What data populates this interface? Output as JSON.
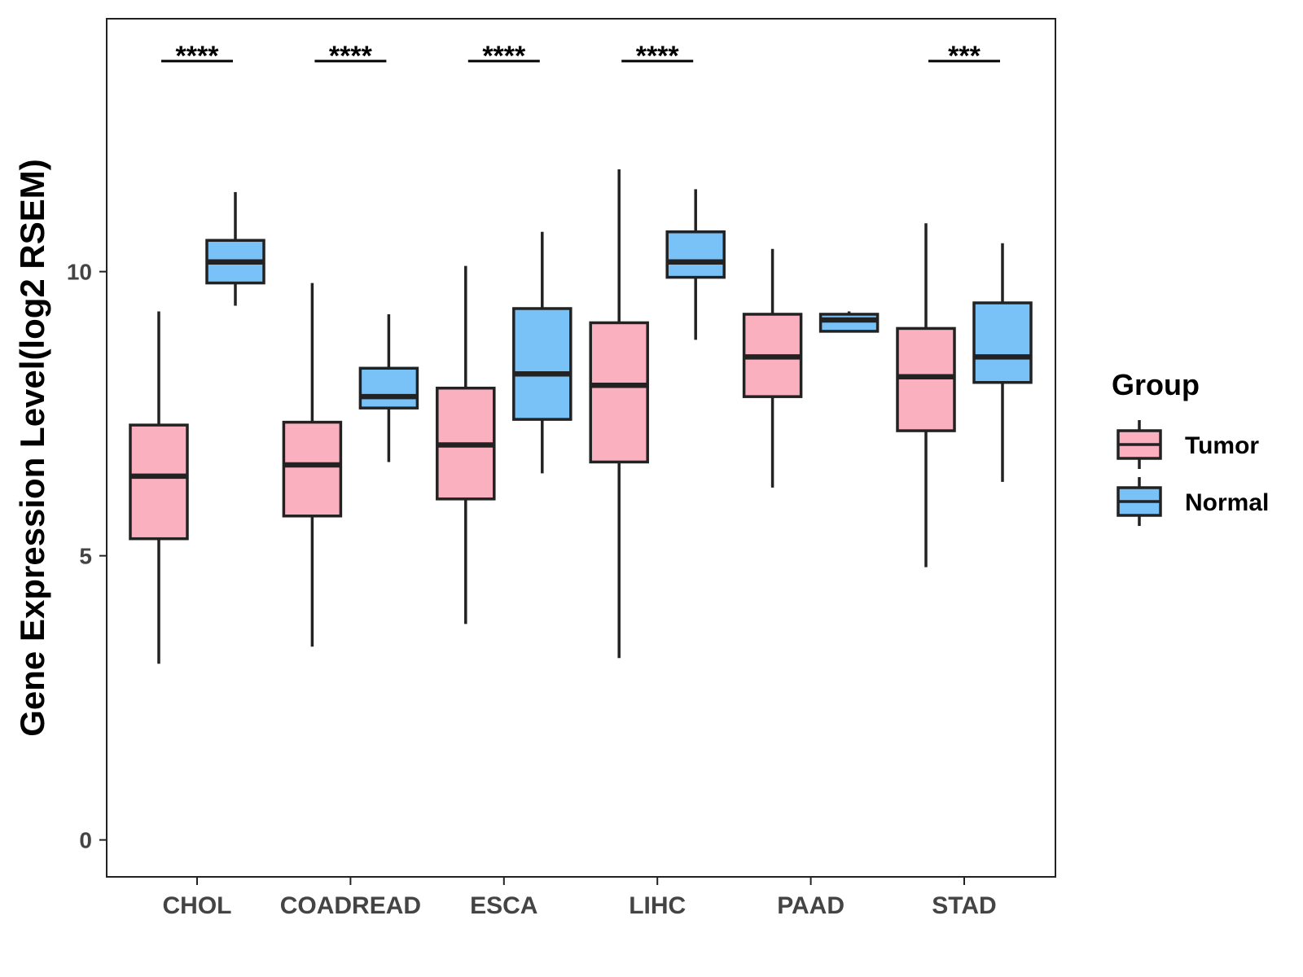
{
  "chart_data": {
    "type": "boxplot",
    "title": "",
    "xlabel": "",
    "ylabel": "Gene Expression Level(log2 RSEM)",
    "ylim": [
      -0.65,
      14.45
    ],
    "yticks": [
      0,
      5,
      10
    ],
    "categories": [
      "CHOL",
      "COADREAD",
      "ESCA",
      "LIHC",
      "PAAD",
      "STAD"
    ],
    "legend": {
      "title": "Group",
      "position": "right",
      "entries": [
        {
          "name": "Tumor",
          "color": "#FBB0C0"
        },
        {
          "name": "Normal",
          "color": "#79C2F8"
        }
      ]
    },
    "series": [
      {
        "name": "Tumor",
        "color": "#FBB0C0",
        "boxes": [
          {
            "min": 3.1,
            "q1": 5.3,
            "median": 6.4,
            "q3": 7.3,
            "max": 9.3
          },
          {
            "min": 3.4,
            "q1": 5.7,
            "median": 6.6,
            "q3": 7.35,
            "max": 9.8
          },
          {
            "min": 3.8,
            "q1": 6.0,
            "median": 6.95,
            "q3": 7.95,
            "max": 10.1
          },
          {
            "min": 3.2,
            "q1": 6.65,
            "median": 8.0,
            "q3": 9.1,
            "max": 11.8
          },
          {
            "min": 6.2,
            "q1": 7.8,
            "median": 8.5,
            "q3": 9.25,
            "max": 10.4
          },
          {
            "min": 4.8,
            "q1": 7.2,
            "median": 8.15,
            "q3": 9.0,
            "max": 10.85
          }
        ]
      },
      {
        "name": "Normal",
        "color": "#79C2F8",
        "boxes": [
          {
            "min": 9.4,
            "q1": 9.8,
            "median": 10.17,
            "q3": 10.55,
            "max": 11.4
          },
          {
            "min": 6.65,
            "q1": 7.6,
            "median": 7.8,
            "q3": 8.3,
            "max": 9.25
          },
          {
            "min": 6.45,
            "q1": 7.4,
            "median": 8.2,
            "q3": 9.35,
            "max": 10.7
          },
          {
            "min": 8.8,
            "q1": 9.9,
            "median": 10.17,
            "q3": 10.7,
            "max": 11.45
          },
          {
            "min": 8.95,
            "q1": 8.95,
            "median": 9.15,
            "q3": 9.25,
            "max": 9.3
          },
          {
            "min": 6.3,
            "q1": 8.05,
            "median": 8.5,
            "q3": 9.45,
            "max": 10.5
          }
        ]
      }
    ],
    "significance": [
      "****",
      "****",
      "****",
      "****",
      "",
      "***"
    ]
  }
}
